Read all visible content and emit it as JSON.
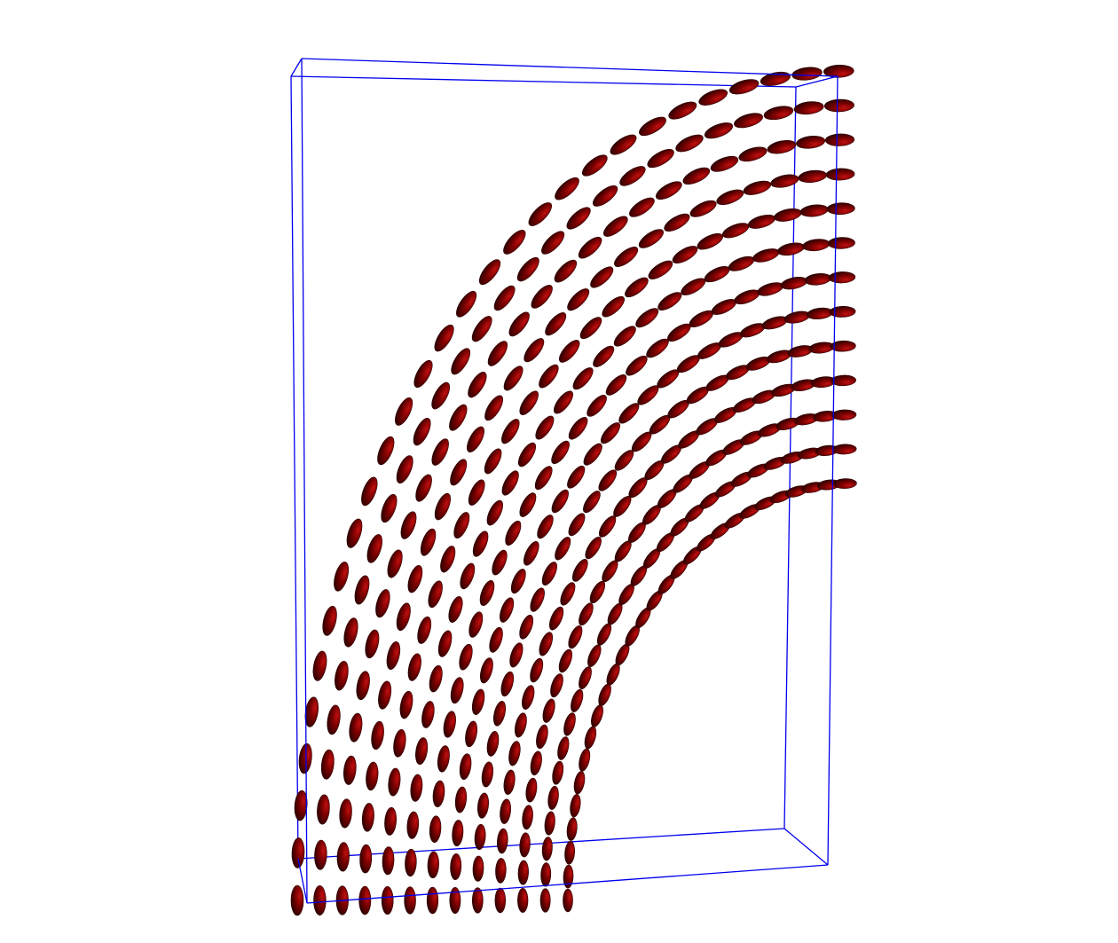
{
  "scene": {
    "background": "#ffffff",
    "box_color": "#0000ee",
    "glyph_color": "#7a0000",
    "glyph_highlight": "#c01010",
    "glyph_shadow": "#2a0000",
    "glyph_shape": "ellipsoid",
    "field": "director-field-ellipsoids",
    "grid_columns": 13,
    "grid_rows": 28
  }
}
